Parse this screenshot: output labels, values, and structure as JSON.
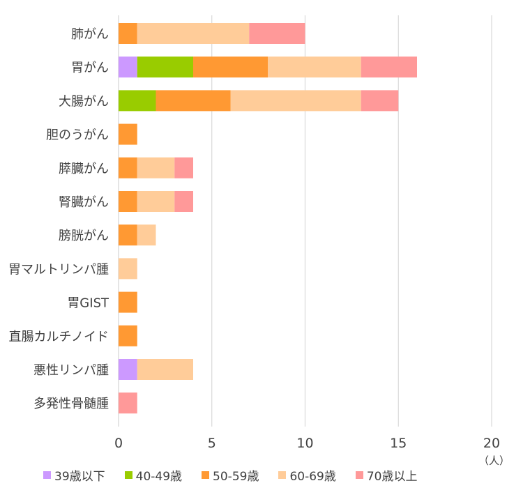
{
  "chart_data": {
    "type": "bar",
    "orientation": "horizontal",
    "stacked": true,
    "categories": [
      "肺がん",
      "胃がん",
      "大腸がん",
      "胆のうがん",
      "膵臓がん",
      "腎臓がん",
      "膀胱がん",
      "胃マルトリンパ腫",
      "胃GIST",
      "直腸カルチノイド",
      "悪性リンパ腫",
      "多発性骨髄腫"
    ],
    "series": [
      {
        "name": "39歳以下",
        "color": "#cc99ff",
        "values": [
          0,
          1,
          0,
          0,
          0,
          0,
          0,
          0,
          0,
          0,
          1,
          0
        ]
      },
      {
        "name": "40-49歳",
        "color": "#99cc00",
        "values": [
          0,
          3,
          2,
          0,
          0,
          0,
          0,
          0,
          0,
          0,
          0,
          0
        ]
      },
      {
        "name": "50-59歳",
        "color": "#ff9933",
        "values": [
          1,
          4,
          4,
          1,
          1,
          1,
          1,
          0,
          1,
          1,
          0,
          0
        ]
      },
      {
        "name": "60-69歳",
        "color": "#ffcc99",
        "values": [
          6,
          5,
          7,
          0,
          2,
          2,
          1,
          1,
          0,
          0,
          3,
          0
        ]
      },
      {
        "name": "70歳以上",
        "color": "#ff9999",
        "values": [
          3,
          3,
          2,
          0,
          1,
          1,
          0,
          0,
          0,
          0,
          0,
          1
        ]
      }
    ],
    "xlim": [
      0,
      20
    ],
    "xticks": [
      "0",
      "5",
      "10",
      "15",
      "20"
    ],
    "unit_label": "（人）",
    "grid": true,
    "legend_position": "bottom"
  }
}
